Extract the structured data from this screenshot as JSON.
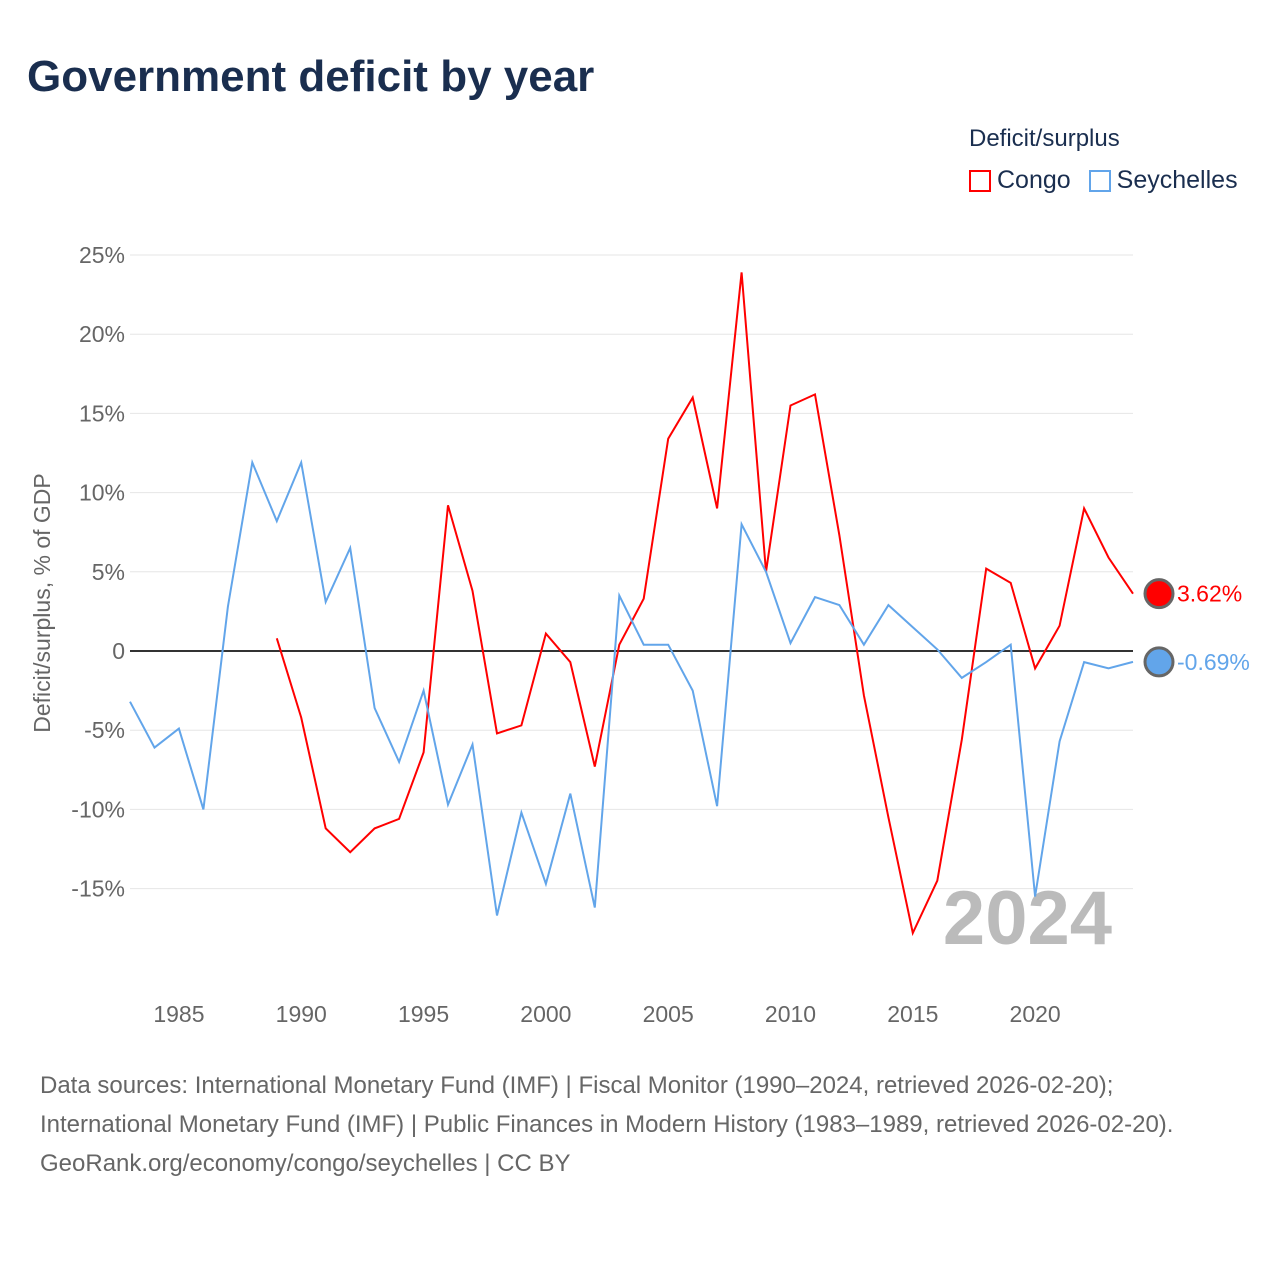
{
  "title": "Government deficit by year",
  "legend": {
    "title": "Deficit/surplus",
    "items": [
      {
        "label": "Congo",
        "color": "#ff0000"
      },
      {
        "label": "Seychelles",
        "color": "#62a5ea"
      }
    ]
  },
  "year_label": "2024",
  "footer": {
    "sources": "Data sources: International Monetary Fund (IMF) | Fiscal Monitor (1990–2024, retrieved 2026-02-20); International Monetary Fund (IMF) | Public Finances in Modern History (1983–1989, retrieved 2026-02-20).",
    "credit": "GeoRank.org/economy/congo/seychelles | CC BY"
  },
  "chart_data": {
    "type": "line",
    "title": "Government deficit by year",
    "xlabel": "",
    "ylabel": "Deficit/surplus, % of GDP",
    "xlim": [
      1983,
      2024
    ],
    "ylim": [
      -21,
      25
    ],
    "x_ticks": [
      1985,
      1990,
      1995,
      2000,
      2005,
      2010,
      2015,
      2020
    ],
    "y_ticks": [
      25,
      20,
      15,
      10,
      5,
      0,
      -5,
      -10,
      -15
    ],
    "y_tick_labels": [
      "25%",
      "20%",
      "15%",
      "10%",
      "5%",
      "0",
      "-5%",
      "-10%",
      "-15%"
    ],
    "grid": true,
    "legend_position": "top-right",
    "series": [
      {
        "name": "Congo",
        "color": "#ff0000",
        "end_label": "3.62%",
        "x": [
          1989,
          1990,
          1991,
          1992,
          1993,
          1994,
          1995,
          1996,
          1997,
          1998,
          1999,
          2000,
          2001,
          2002,
          2003,
          2004,
          2005,
          2006,
          2007,
          2008,
          2009,
          2010,
          2011,
          2012,
          2013,
          2014,
          2015,
          2016,
          2017,
          2018,
          2019,
          2020,
          2021,
          2022,
          2023,
          2024
        ],
        "values": [
          0.8,
          -4.2,
          -11.2,
          -12.7,
          -11.2,
          -10.6,
          -6.4,
          9.2,
          3.8,
          -5.2,
          -4.7,
          1.1,
          -0.7,
          -7.3,
          0.4,
          3.3,
          13.4,
          16.0,
          9.0,
          23.9,
          5.0,
          15.5,
          16.2,
          7.3,
          -2.8,
          -10.5,
          -17.8,
          -14.5,
          -5.6,
          5.2,
          4.3,
          -1.1,
          1.6,
          9.0,
          5.9,
          3.62
        ]
      },
      {
        "name": "Seychelles",
        "color": "#62a5ea",
        "end_label": "-0.69%",
        "x": [
          1983,
          1984,
          1985,
          1986,
          1987,
          1988,
          1989,
          1990,
          1991,
          1992,
          1993,
          1994,
          1995,
          1996,
          1997,
          1998,
          1999,
          2000,
          2001,
          2002,
          2003,
          2004,
          2005,
          2006,
          2007,
          2008,
          2009,
          2010,
          2011,
          2012,
          2013,
          2014,
          2015,
          2016,
          2017,
          2018,
          2019,
          2020,
          2021,
          2022,
          2023,
          2024
        ],
        "values": [
          -3.2,
          -6.1,
          -4.9,
          -10.0,
          2.8,
          11.9,
          8.2,
          11.9,
          3.1,
          6.5,
          -3.6,
          -7.0,
          -2.5,
          -9.7,
          -5.9,
          -16.7,
          -10.2,
          -14.7,
          -9.0,
          -16.2,
          3.5,
          0.4,
          0.4,
          -2.5,
          -9.8,
          8.0,
          5.0,
          0.5,
          3.4,
          2.9,
          0.4,
          2.9,
          1.5,
          0.1,
          -1.7,
          -0.7,
          0.4,
          -15.5,
          -5.7,
          -0.7,
          -1.1,
          -0.69
        ]
      }
    ]
  }
}
